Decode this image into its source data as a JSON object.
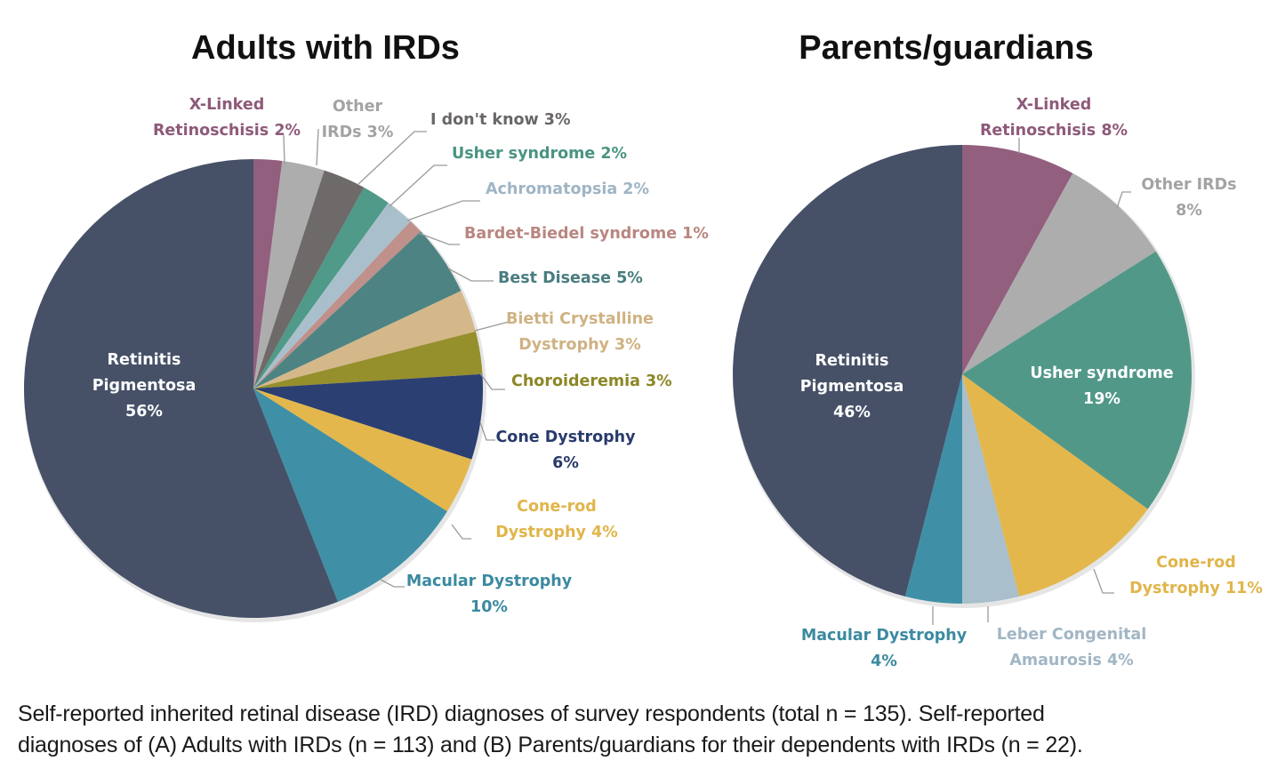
{
  "chart_data": [
    {
      "type": "pie",
      "title": "Adults with IRDs",
      "start": "12 o'clock, clockwise",
      "slices": [
        {
          "label": "X-Linked Retinoschisis",
          "value": 2,
          "color": "#925f7e",
          "text": [
            "X-Linked",
            "Retinoschisis 2%"
          ]
        },
        {
          "label": "Other IRDs",
          "value": 3,
          "color": "#adadad",
          "text": [
            "Other",
            "IRDs 3%"
          ]
        },
        {
          "label": "I don't know",
          "value": 3,
          "color": "#6e6a6a",
          "text": [
            "I don't know 3%"
          ]
        },
        {
          "label": "Usher syndrome",
          "value": 2,
          "color": "#4f9a88",
          "text": [
            "Usher syndrome 2%"
          ]
        },
        {
          "label": "Achromatopsia",
          "value": 2,
          "color": "#a9c0cc",
          "text": [
            "Achromatopsia 2%"
          ]
        },
        {
          "label": "Bardet-Biedel syndrome",
          "value": 1,
          "color": "#c0908a",
          "text": [
            "Bardet-Biedel syndrome 1%"
          ]
        },
        {
          "label": "Best Disease",
          "value": 5,
          "color": "#4e8383",
          "text": [
            "Best Disease 5%"
          ]
        },
        {
          "label": "Bietti Crystalline Dystrophy",
          "value": 3,
          "color": "#d4b88a",
          "text": [
            "Bietti Crystalline",
            "Dystrophy 3%"
          ]
        },
        {
          "label": "Choroideremia",
          "value": 3,
          "color": "#958f2c",
          "text": [
            "Choroideremia 3%"
          ]
        },
        {
          "label": "Cone Dystrophy",
          "value": 6,
          "color": "#2c3f72",
          "text": [
            "Cone Dystrophy",
            "6%"
          ]
        },
        {
          "label": "Cone-rod Dystrophy",
          "value": 4,
          "color": "#e3b74c",
          "text": [
            "Cone-rod",
            "Dystrophy 4%"
          ]
        },
        {
          "label": "Macular Dystrophy",
          "value": 10,
          "color": "#3f90a6",
          "text": [
            "Macular Dystrophy",
            "10%"
          ]
        },
        {
          "label": "Retinitis Pigmentosa",
          "value": 56,
          "color": "#465168",
          "text": [
            "Retinitis",
            "Pigmentosa",
            "56%"
          ]
        }
      ]
    },
    {
      "type": "pie",
      "title": "Parents/guardians",
      "start": "12 o'clock, clockwise",
      "slices": [
        {
          "label": "X-Linked Retinoschisis",
          "value": 8,
          "color": "#925f7e",
          "text": [
            "X-Linked",
            "Retinoschisis 8%"
          ]
        },
        {
          "label": "Other IRDs",
          "value": 8,
          "color": "#adadad",
          "text": [
            "Other IRDs",
            "8%"
          ]
        },
        {
          "label": "Usher syndrome",
          "value": 19,
          "color": "#519888",
          "text": [
            "Usher syndrome",
            "19%"
          ]
        },
        {
          "label": "Cone-rod Dystrophy",
          "value": 11,
          "color": "#e3b74c",
          "text": [
            "Cone-rod",
            "Dystrophy 11%"
          ]
        },
        {
          "label": "Leber Congenital Amaurosis",
          "value": 4,
          "color": "#a9bfcb",
          "text": [
            "Leber Congenital",
            "Amaurosis 4%"
          ]
        },
        {
          "label": "Macular Dystrophy",
          "value": 4,
          "color": "#3f90a6",
          "text": [
            "Macular Dystrophy",
            "4%"
          ]
        },
        {
          "label": "Retinitis Pigmentosa",
          "value": 46,
          "color": "#465168",
          "text": [
            "Retinitis",
            "Pigmentosa",
            "46%"
          ]
        }
      ]
    }
  ],
  "label_colors": {
    "X-Linked Retinoschisis": "#8e5a7a",
    "Other IRDs": "#a3a3a3",
    "I don't know": "#6a6666",
    "Usher syndrome": "#4a9482",
    "Achromatopsia": "#9fb5c4",
    "Bardet-Biedel syndrome": "#b98680",
    "Best Disease": "#4a7d80",
    "Bietti Crystalline Dystrophy": "#cfb283",
    "Choroideremia": "#8c8726",
    "Cone Dystrophy": "#283b6b",
    "Cone-rod Dystrophy": "#e0b54a",
    "Macular Dystrophy": "#3b8aa0",
    "Leber Congenital Amaurosis": "#a1b6c4",
    "Retinitis Pigmentosa": "#ffffff"
  },
  "caption": {
    "line1": "Self-reported inherited retinal disease (IRD) diagnoses of survey respondents (total n = 135). Self-reported",
    "line2": "diagnoses of (A) Adults with IRDs (n = 113) and (B) Parents/guardians for their dependents with IRDs (n = 22)."
  }
}
